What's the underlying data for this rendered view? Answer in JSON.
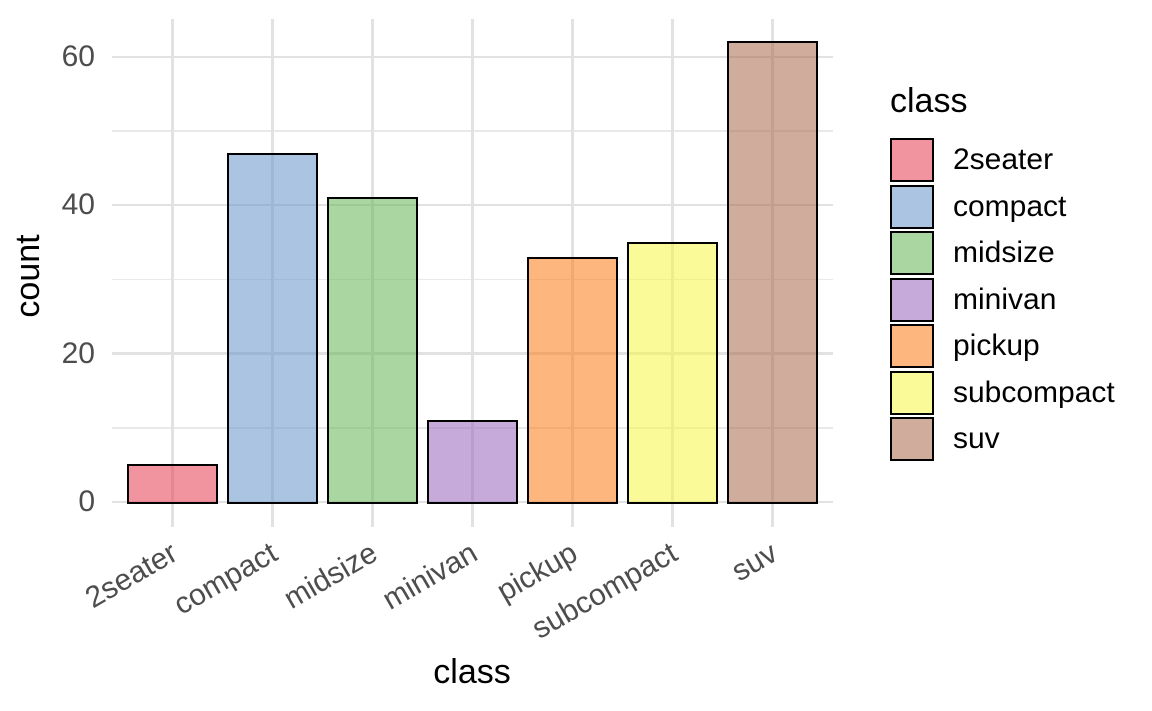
{
  "chart_data": {
    "type": "bar",
    "title": "",
    "xlabel": "class",
    "ylabel": "count",
    "categories": [
      "2seater",
      "compact",
      "midsize",
      "minivan",
      "pickup",
      "subcompact",
      "suv"
    ],
    "values": [
      5,
      47,
      41,
      11,
      33,
      35,
      62
    ],
    "fills": [
      "rgba(230,60,80,0.55)",
      "rgba(100,148,200,0.55)",
      "rgba(100,180,85,0.55)",
      "rgba(152,100,185,0.55)",
      "rgba(250,122,20,0.55)",
      "rgba(248,246,70,0.55)",
      "rgba(170,104,77,0.55)"
    ],
    "fills_hex_on_white": [
      "#F1949F",
      "#AAC4E1",
      "#AAD6A2",
      "#C6AAD9",
      "#FCB67E",
      "#FBFA99",
      "#D0AC9D"
    ],
    "bar_stroke_color": "#000000",
    "ylim": [
      0,
      65
    ],
    "y_major_ticks": [
      0,
      20,
      40,
      60
    ],
    "y_minor_ticks": [
      10,
      30,
      50
    ],
    "grid": "on",
    "legend_position": "right",
    "legend_title": "class",
    "legend_entries": [
      "2seater",
      "compact",
      "midsize",
      "minivan",
      "pickup",
      "subcompact",
      "suv"
    ]
  },
  "colors": {
    "background": "#FFFFFF",
    "grid_major": "#E2E2E2",
    "grid_minor": "#E9E9E9",
    "tick_label": "#4D4D4D",
    "title_text": "#000000"
  }
}
